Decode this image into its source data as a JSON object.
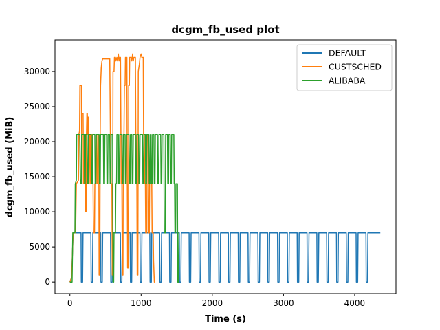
{
  "chart_data": {
    "type": "line",
    "title": "dcgm_fb_used plot",
    "xlabel": "Time (s)",
    "ylabel": "dcgm_fb_used (MiB)",
    "xlim": [
      -210,
      4580
    ],
    "ylim": [
      -1650,
      34500
    ],
    "xticks": [
      0,
      1000,
      2000,
      3000,
      4000
    ],
    "yticks": [
      0,
      5000,
      10000,
      15000,
      20000,
      25000,
      30000
    ],
    "legend_position": "top-right",
    "grid": false,
    "series": [
      {
        "name": "DEFAULT",
        "color": "#1f77b4",
        "start": 0,
        "end": 4360,
        "pattern": "periodic pulses: ~7000 MiB plateaus separated by short drops to ~0 MiB, period ~138 s",
        "points": [
          [
            0,
            0
          ],
          [
            25,
            700
          ],
          [
            45,
            7000
          ],
          [
            150,
            7000
          ],
          [
            160,
            0
          ],
          [
            178,
            0
          ],
          [
            188,
            7000
          ],
          [
            4360,
            7000
          ]
        ],
        "drop_times": [
          160,
          298,
          436,
          574,
          712,
          850,
          988,
          1126,
          1264,
          1402,
          1540,
          1678,
          1816,
          1954,
          2092,
          2230,
          2368,
          2506,
          2644,
          2782,
          2920,
          3058,
          3196,
          3334,
          3472,
          3610,
          3748,
          3886,
          4024,
          4162
        ],
        "drop_width": 18,
        "high_value": 7000
      },
      {
        "name": "CUSTSCHED",
        "color": "#ff7f0e",
        "points": [
          [
            0,
            0
          ],
          [
            25,
            700
          ],
          [
            45,
            7000
          ],
          [
            80,
            7000
          ],
          [
            90,
            14000
          ],
          [
            120,
            14500
          ],
          [
            125,
            21000
          ],
          [
            135,
            21500
          ],
          [
            140,
            28000
          ],
          [
            160,
            28000
          ],
          [
            165,
            21000
          ],
          [
            170,
            24000
          ],
          [
            185,
            24000
          ],
          [
            190,
            14000
          ],
          [
            200,
            14000
          ],
          [
            205,
            21000
          ],
          [
            215,
            21000
          ],
          [
            220,
            10000
          ],
          [
            228,
            10000
          ],
          [
            232,
            21000
          ],
          [
            238,
            24000
          ],
          [
            245,
            24000
          ],
          [
            250,
            21000
          ],
          [
            255,
            23500
          ],
          [
            262,
            23500
          ],
          [
            266,
            14000
          ],
          [
            272,
            14000
          ],
          [
            278,
            21000
          ],
          [
            285,
            21000
          ],
          [
            290,
            14000
          ],
          [
            296,
            14000
          ],
          [
            302,
            21000
          ],
          [
            310,
            21000
          ],
          [
            315,
            14000
          ],
          [
            325,
            14000
          ],
          [
            330,
            7000
          ],
          [
            345,
            7000
          ],
          [
            350,
            14000
          ],
          [
            360,
            14000
          ],
          [
            368,
            21000
          ],
          [
            375,
            21000
          ],
          [
            380,
            14000
          ],
          [
            390,
            14000
          ],
          [
            395,
            21000
          ],
          [
            405,
            21000
          ],
          [
            410,
            1000
          ],
          [
            420,
            1000
          ],
          [
            425,
            21000
          ],
          [
            430,
            28000
          ],
          [
            440,
            30500
          ],
          [
            450,
            31500
          ],
          [
            460,
            31800
          ],
          [
            560,
            31800
          ],
          [
            568,
            21000
          ],
          [
            575,
            21000
          ],
          [
            580,
            14000
          ],
          [
            590,
            14000
          ],
          [
            595,
            1000
          ],
          [
            600,
            1000
          ],
          [
            605,
            30000
          ],
          [
            620,
            30000
          ],
          [
            625,
            32000
          ],
          [
            640,
            32000
          ],
          [
            645,
            31500
          ],
          [
            660,
            32000
          ],
          [
            670,
            31500
          ],
          [
            680,
            32500
          ],
          [
            690,
            31500
          ],
          [
            700,
            32000
          ],
          [
            710,
            32000
          ],
          [
            720,
            14000
          ],
          [
            730,
            14000
          ],
          [
            735,
            1000
          ],
          [
            745,
            1000
          ],
          [
            750,
            21000
          ],
          [
            760,
            21000
          ],
          [
            765,
            28000
          ],
          [
            775,
            28000
          ],
          [
            780,
            32000
          ],
          [
            790,
            31500
          ],
          [
            800,
            32000
          ],
          [
            810,
            2000
          ],
          [
            820,
            2000
          ],
          [
            825,
            28000
          ],
          [
            835,
            28000
          ],
          [
            840,
            32000
          ],
          [
            860,
            32000
          ],
          [
            870,
            31500
          ],
          [
            880,
            32500
          ],
          [
            890,
            31500
          ],
          [
            900,
            32000
          ],
          [
            920,
            32000
          ],
          [
            930,
            14000
          ],
          [
            940,
            14000
          ],
          [
            945,
            1000
          ],
          [
            955,
            1000
          ],
          [
            960,
            30000
          ],
          [
            975,
            31000
          ],
          [
            985,
            32000
          ],
          [
            1000,
            32500
          ],
          [
            1010,
            32000
          ],
          [
            1030,
            32000
          ],
          [
            1035,
            21000
          ],
          [
            1045,
            21000
          ],
          [
            1050,
            14000
          ],
          [
            1060,
            14000
          ],
          [
            1065,
            7000
          ],
          [
            1080,
            7000
          ],
          [
            1085,
            21000
          ],
          [
            1100,
            21000
          ],
          [
            1105,
            7000
          ],
          [
            1115,
            7000
          ],
          [
            1120,
            14000
          ],
          [
            1150,
            14000
          ],
          [
            1155,
            7000
          ],
          [
            1170,
            7000
          ],
          [
            1175,
            3000
          ],
          [
            1185,
            0
          ],
          [
            1195,
            0
          ]
        ]
      },
      {
        "name": "ALIBABA",
        "color": "#2ca02c",
        "points": [
          [
            0,
            0
          ],
          [
            30,
            0
          ],
          [
            40,
            7000
          ],
          [
            70,
            7000
          ],
          [
            75,
            14000
          ],
          [
            90,
            14500
          ],
          [
            95,
            21000
          ],
          [
            140,
            21000
          ],
          [
            145,
            14000
          ],
          [
            150,
            14500
          ],
          [
            160,
            14000
          ],
          [
            165,
            21000
          ],
          [
            200,
            21000
          ],
          [
            205,
            14000
          ],
          [
            215,
            14000
          ],
          [
            220,
            21000
          ],
          [
            240,
            21000
          ],
          [
            245,
            14000
          ],
          [
            255,
            14000
          ],
          [
            260,
            21000
          ],
          [
            300,
            21000
          ],
          [
            305,
            14000
          ],
          [
            315,
            14000
          ],
          [
            320,
            21000
          ],
          [
            350,
            21000
          ],
          [
            355,
            14000
          ],
          [
            365,
            14000
          ],
          [
            370,
            21000
          ],
          [
            410,
            21000
          ],
          [
            415,
            14000
          ],
          [
            425,
            14000
          ],
          [
            430,
            21000
          ],
          [
            470,
            21000
          ],
          [
            475,
            14000
          ],
          [
            485,
            14000
          ],
          [
            490,
            21000
          ],
          [
            515,
            21000
          ],
          [
            520,
            14000
          ],
          [
            530,
            14000
          ],
          [
            535,
            21000
          ],
          [
            560,
            21000
          ],
          [
            565,
            14000
          ],
          [
            575,
            14000
          ],
          [
            580,
            21000
          ],
          [
            600,
            21000
          ],
          [
            605,
            0
          ],
          [
            615,
            0
          ],
          [
            620,
            7000
          ],
          [
            640,
            7000
          ],
          [
            645,
            14000
          ],
          [
            655,
            14000
          ],
          [
            660,
            21000
          ],
          [
            680,
            21000
          ],
          [
            685,
            14000
          ],
          [
            695,
            14000
          ],
          [
            700,
            21000
          ],
          [
            730,
            21000
          ],
          [
            735,
            14000
          ],
          [
            745,
            14000
          ],
          [
            750,
            21000
          ],
          [
            775,
            21000
          ],
          [
            780,
            14000
          ],
          [
            790,
            14000
          ],
          [
            795,
            21000
          ],
          [
            830,
            21000
          ],
          [
            835,
            14000
          ],
          [
            845,
            14000
          ],
          [
            850,
            21000
          ],
          [
            870,
            21000
          ],
          [
            875,
            14000
          ],
          [
            885,
            14000
          ],
          [
            890,
            21000
          ],
          [
            920,
            21000
          ],
          [
            925,
            14000
          ],
          [
            935,
            14000
          ],
          [
            940,
            21000
          ],
          [
            965,
            21000
          ],
          [
            970,
            14000
          ],
          [
            980,
            14000
          ],
          [
            985,
            21000
          ],
          [
            1020,
            21000
          ],
          [
            1025,
            14000
          ],
          [
            1035,
            14000
          ],
          [
            1040,
            21000
          ],
          [
            1060,
            21000
          ],
          [
            1065,
            14000
          ],
          [
            1075,
            14000
          ],
          [
            1080,
            21000
          ],
          [
            1110,
            21000
          ],
          [
            1115,
            14000
          ],
          [
            1125,
            14000
          ],
          [
            1130,
            21000
          ],
          [
            1140,
            21000
          ],
          [
            1145,
            14000
          ],
          [
            1155,
            14000
          ],
          [
            1160,
            21000
          ],
          [
            1180,
            21000
          ],
          [
            1185,
            14000
          ],
          [
            1195,
            14000
          ],
          [
            1200,
            21000
          ],
          [
            1230,
            21000
          ],
          [
            1235,
            14000
          ],
          [
            1245,
            14000
          ],
          [
            1250,
            21000
          ],
          [
            1275,
            21000
          ],
          [
            1280,
            14000
          ],
          [
            1290,
            14000
          ],
          [
            1295,
            21000
          ],
          [
            1320,
            21000
          ],
          [
            1325,
            7000
          ],
          [
            1340,
            7000
          ],
          [
            1345,
            21000
          ],
          [
            1370,
            21000
          ],
          [
            1375,
            14000
          ],
          [
            1385,
            14000
          ],
          [
            1390,
            21000
          ],
          [
            1410,
            21000
          ],
          [
            1415,
            14000
          ],
          [
            1425,
            14000
          ],
          [
            1430,
            21000
          ],
          [
            1460,
            21000
          ],
          [
            1465,
            14000
          ],
          [
            1470,
            14000
          ],
          [
            1475,
            7000
          ],
          [
            1485,
            7000
          ],
          [
            1490,
            14000
          ],
          [
            1510,
            14000
          ],
          [
            1515,
            0
          ],
          [
            1525,
            0
          ],
          [
            1530,
            7000
          ],
          [
            1540,
            7000
          ]
        ]
      }
    ]
  }
}
